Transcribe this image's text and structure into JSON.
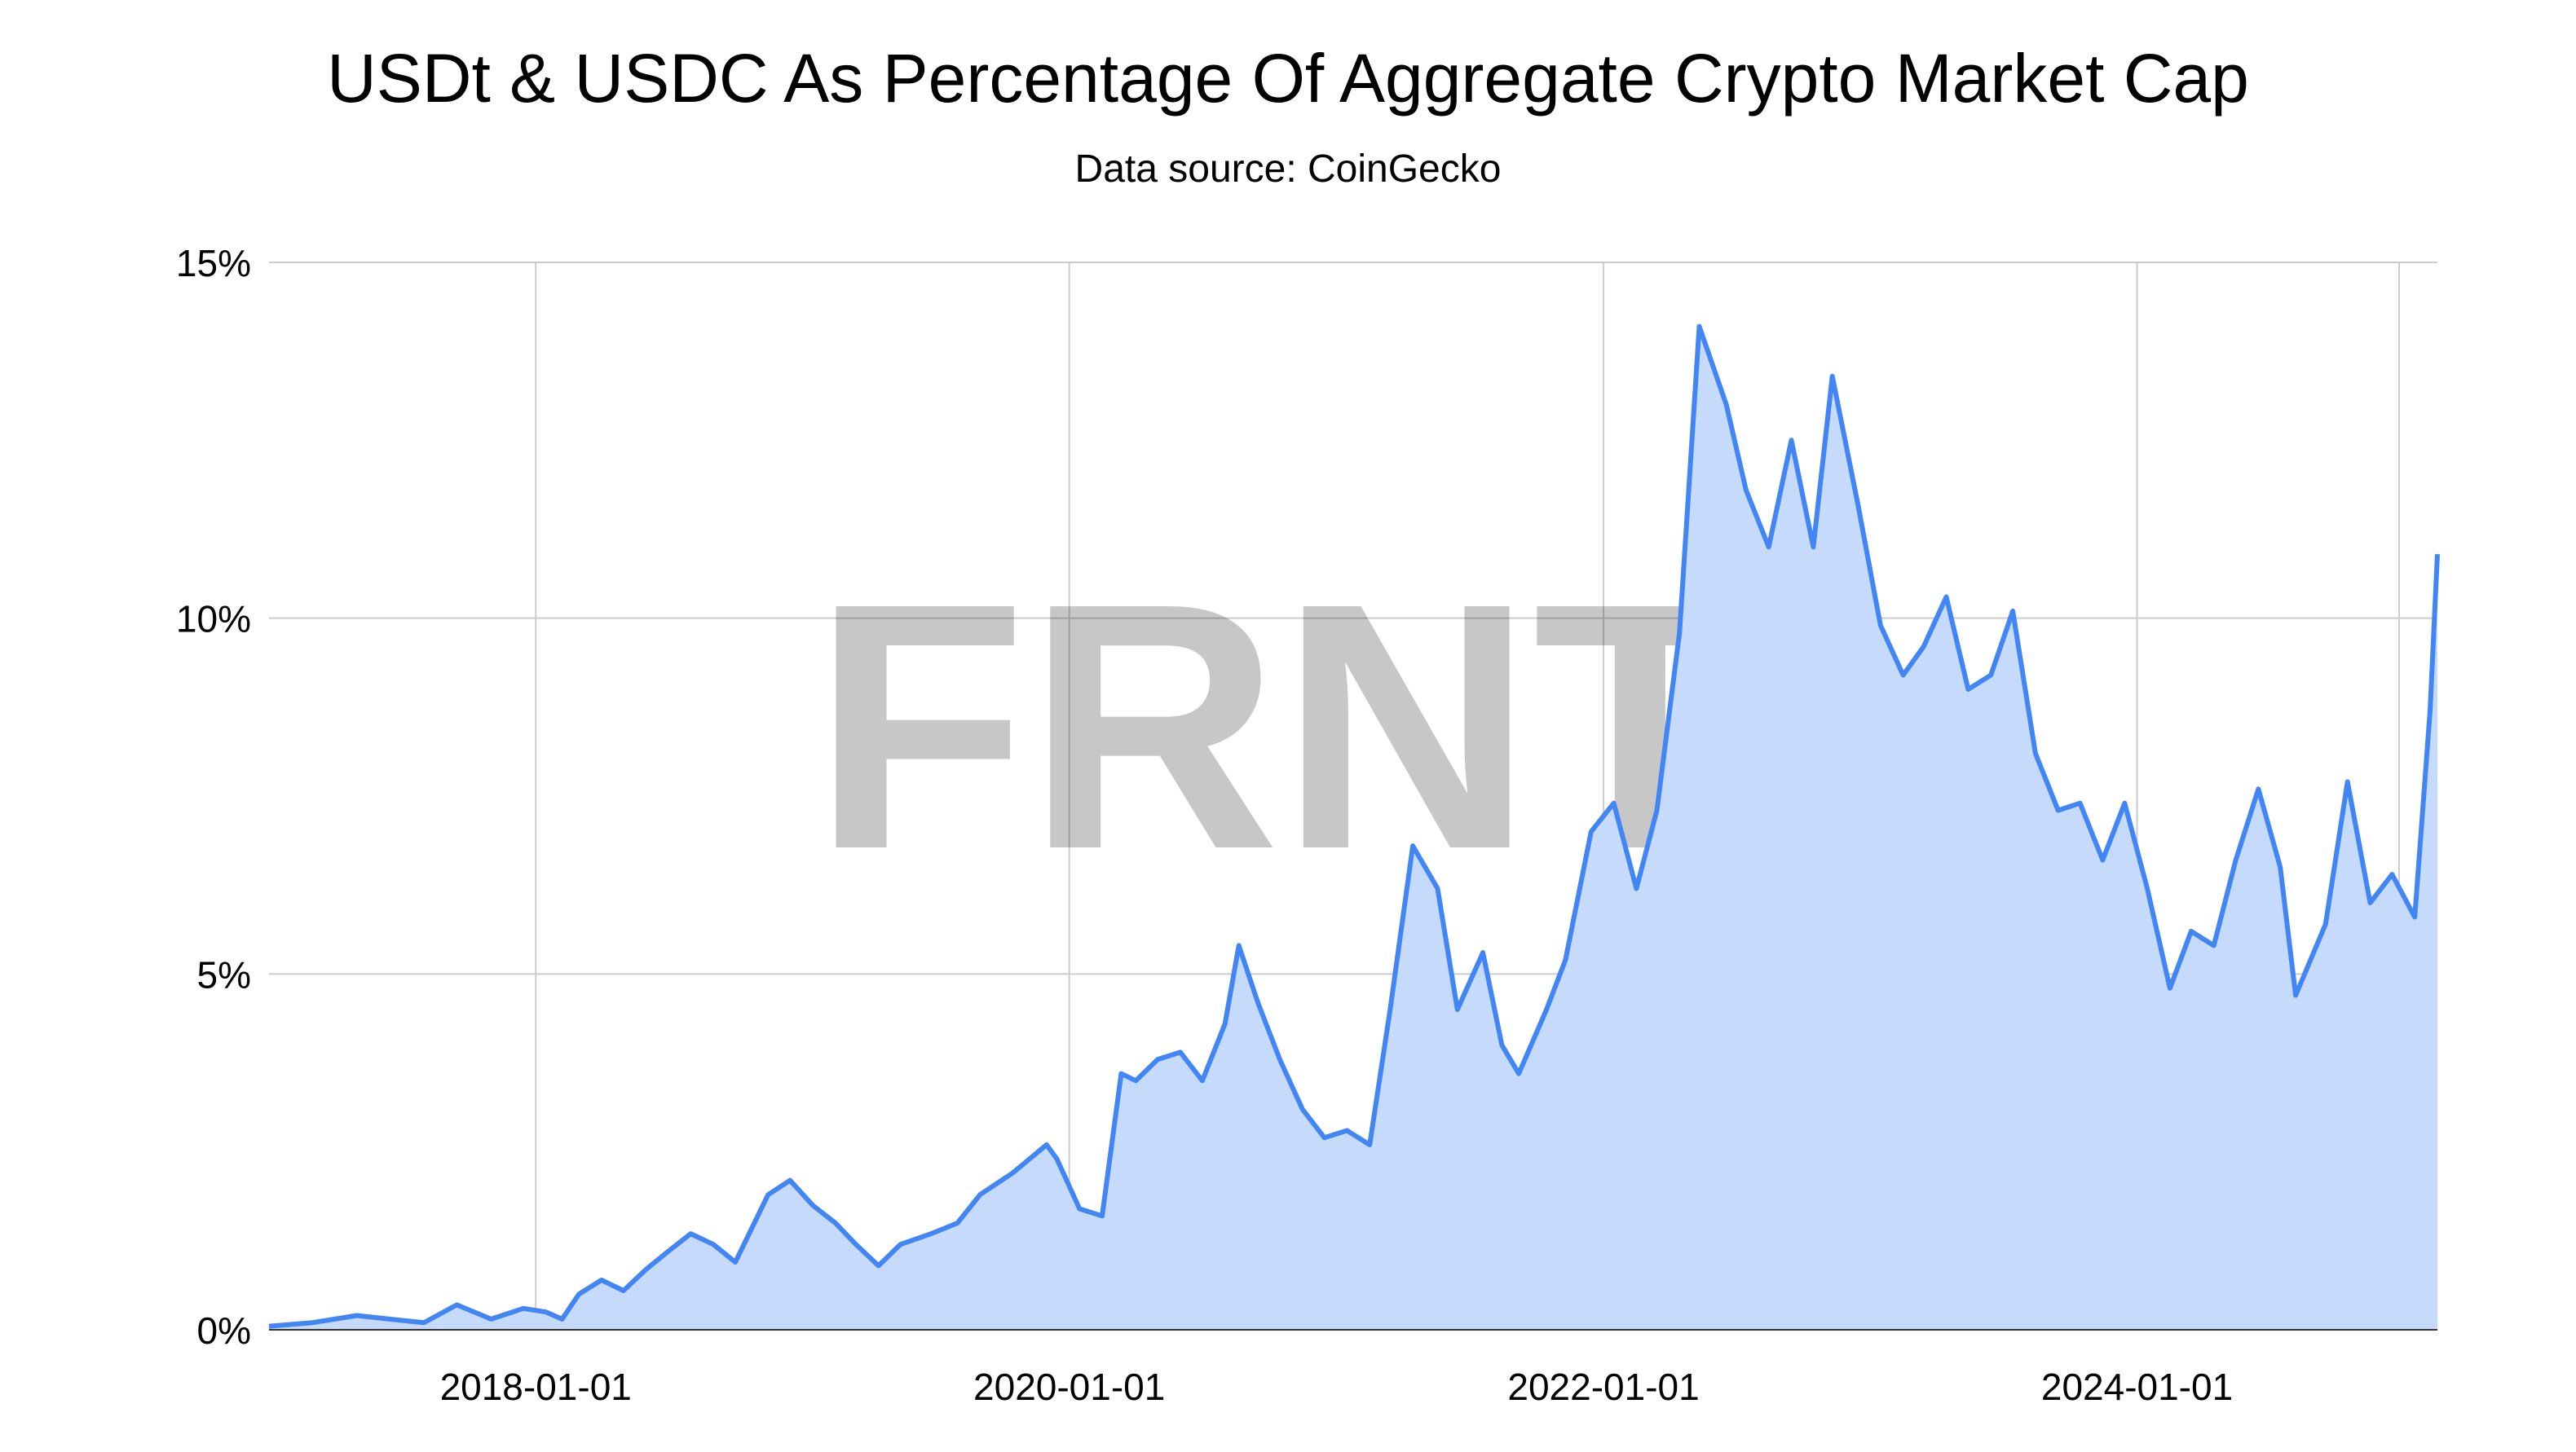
{
  "chart_data": {
    "type": "area",
    "title": "USDt & USDC As Percentage Of Aggregate Crypto Market Cap",
    "subtitle": "Data source: CoinGecko",
    "watermark": "FRNT",
    "xlabel": "",
    "ylabel": "",
    "x_ticks": [
      "2018-01-01",
      "2020-01-01",
      "2022-01-01",
      "2024-01-01"
    ],
    "y_ticks": [
      "0%",
      "5%",
      "10%",
      "15%"
    ],
    "y_tick_values": [
      0,
      5,
      10,
      15
    ],
    "ylim": [
      0,
      15
    ],
    "xlim": [
      "2017-01-01",
      "2025-02-15"
    ],
    "grid": true,
    "legend": "none",
    "line_color": "#4285f4",
    "fill_color": "#c6dafc",
    "grid_color": "#cccccc",
    "series": [
      {
        "x": [
          "2017-01-01",
          "2017-03-01",
          "2017-05-01",
          "2017-06-15",
          "2017-08-01",
          "2017-09-15",
          "2017-11-01",
          "2017-12-15",
          "2018-01-15",
          "2018-02-06",
          "2018-03-01",
          "2018-04-01",
          "2018-05-01",
          "2018-06-01",
          "2018-07-01",
          "2018-08-01",
          "2018-09-01",
          "2018-10-01",
          "2018-11-15",
          "2018-12-15",
          "2019-01-15",
          "2019-02-15",
          "2019-03-15",
          "2019-04-15",
          "2019-05-15",
          "2019-06-26",
          "2019-08-01",
          "2019-09-01",
          "2019-10-15",
          "2019-12-01",
          "2019-12-15",
          "2020-01-15",
          "2020-02-15",
          "2020-03-12",
          "2020-04-01",
          "2020-05-01",
          "2020-06-01",
          "2020-07-01",
          "2020-08-01",
          "2020-08-20",
          "2020-09-15",
          "2020-10-15",
          "2020-11-15",
          "2020-12-15",
          "2021-01-15",
          "2021-02-15",
          "2021-03-15",
          "2021-04-15",
          "2021-05-19",
          "2021-06-15",
          "2021-07-20",
          "2021-08-15",
          "2021-09-07",
          "2021-10-15",
          "2021-11-10",
          "2021-12-15",
          "2022-01-15",
          "2022-02-15",
          "2022-03-15",
          "2022-04-15",
          "2022-05-12",
          "2022-06-18",
          "2022-07-15",
          "2022-08-15",
          "2022-09-15",
          "2022-10-15",
          "2022-11-10",
          "2022-12-15",
          "2023-01-15",
          "2023-02-15",
          "2023-03-15",
          "2023-04-15",
          "2023-05-15",
          "2023-06-15",
          "2023-07-15",
          "2023-08-15",
          "2023-09-15",
          "2023-10-15",
          "2023-11-15",
          "2023-12-15",
          "2024-01-15",
          "2024-02-15",
          "2024-03-15",
          "2024-04-15",
          "2024-05-15",
          "2024-06-15",
          "2024-07-15",
          "2024-08-05",
          "2024-09-15",
          "2024-10-15",
          "2024-11-15",
          "2024-12-15",
          "2025-01-15",
          "2025-02-05",
          "2025-02-15"
        ],
        "values": [
          0.05,
          0.1,
          0.2,
          0.15,
          0.1,
          0.35,
          0.15,
          0.3,
          0.25,
          0.15,
          0.5,
          0.7,
          0.55,
          0.85,
          1.1,
          1.35,
          1.2,
          0.95,
          1.9,
          2.1,
          1.75,
          1.5,
          1.2,
          0.9,
          1.2,
          1.35,
          1.5,
          1.9,
          2.2,
          2.6,
          2.4,
          1.7,
          1.6,
          3.6,
          3.5,
          3.8,
          3.9,
          3.5,
          4.3,
          5.4,
          4.6,
          3.8,
          3.1,
          2.7,
          2.8,
          2.6,
          4.5,
          6.8,
          6.2,
          4.5,
          5.3,
          4.0,
          3.6,
          4.5,
          5.2,
          7.0,
          7.4,
          6.2,
          7.3,
          9.8,
          14.1,
          13.0,
          11.8,
          11.0,
          12.5,
          11.0,
          13.4,
          11.6,
          9.9,
          9.2,
          9.6,
          10.3,
          9.0,
          9.2,
          10.1,
          8.1,
          7.3,
          7.4,
          6.6,
          7.4,
          6.2,
          4.8,
          5.6,
          5.4,
          6.6,
          7.6,
          6.5,
          4.7,
          5.7,
          7.7,
          6.0,
          6.4,
          5.8,
          8.7,
          10.9
        ]
      }
    ]
  }
}
